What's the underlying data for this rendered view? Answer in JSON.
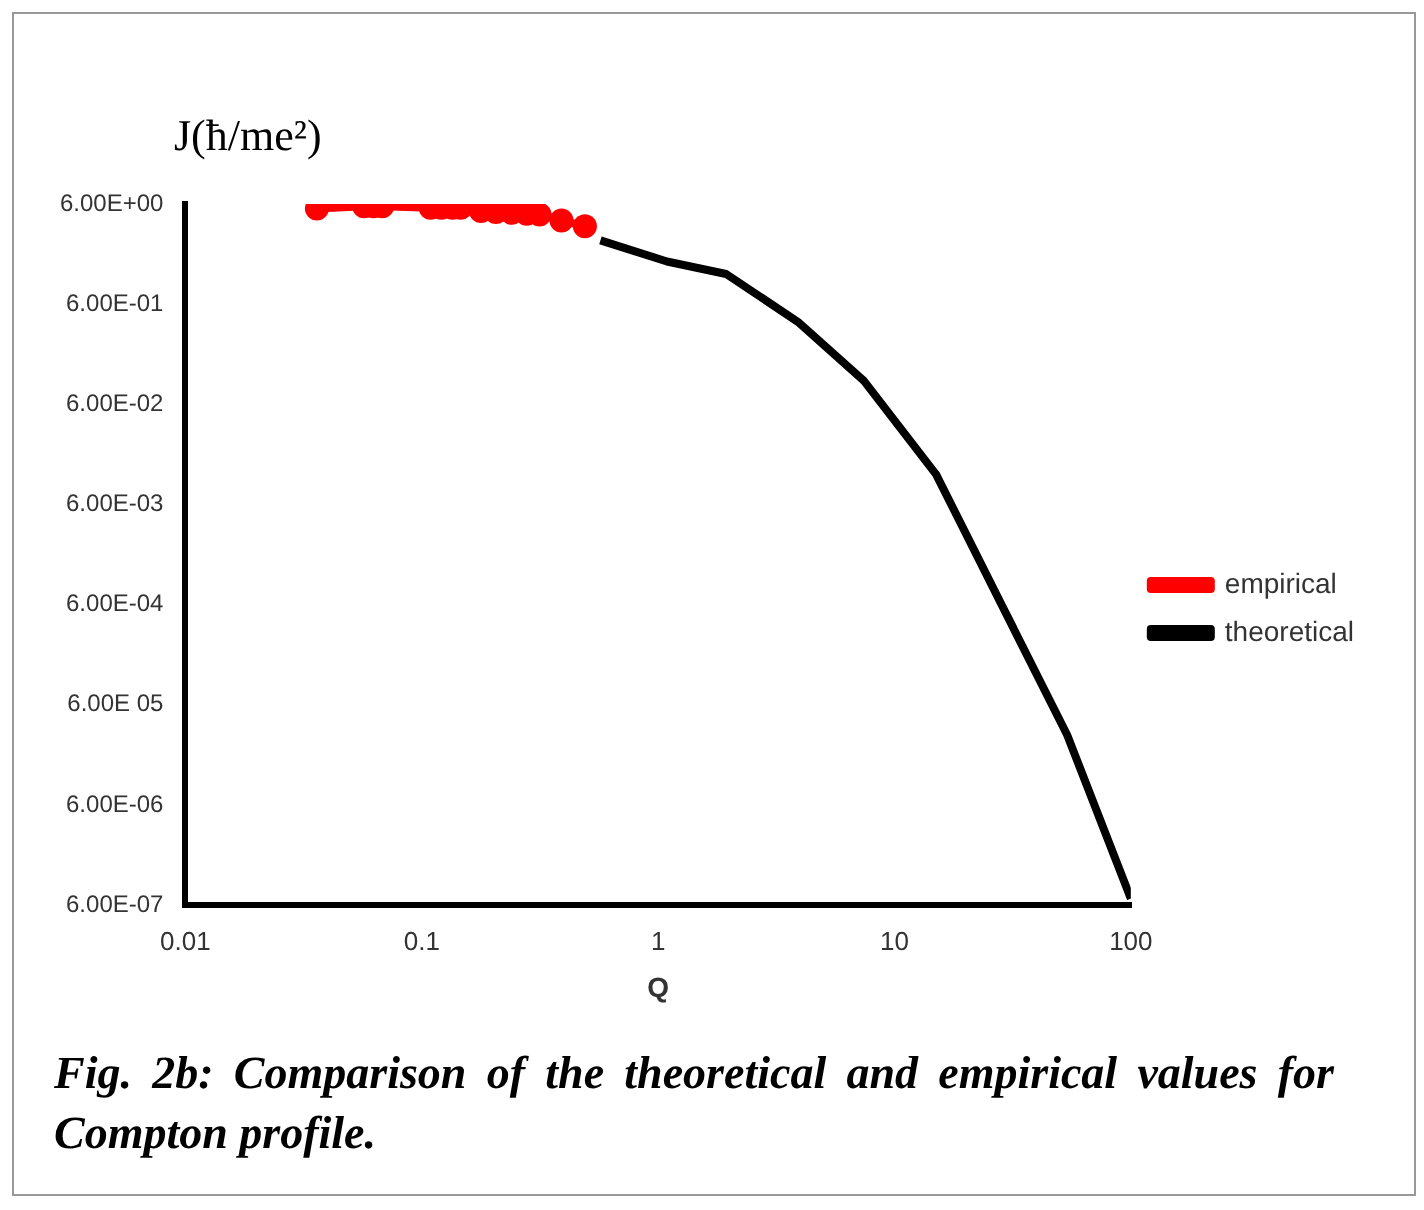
{
  "chart_data": {
    "type": "line",
    "xlabel": "Q",
    "ylabel": "J(ħ/me²)",
    "log": "xy",
    "legend": "right",
    "grid": false,
    "xlim": [
      0.01,
      100
    ],
    "xticks": [
      {
        "value": 0.01,
        "label": "0.01"
      },
      {
        "value": 0.1,
        "label": "0.1"
      },
      1,
      10,
      100
    ],
    "ylim": [
      6e-07,
      6
    ],
    "yticks": [
      {
        "value": 6e-07,
        "label": "6.00E-07"
      },
      {
        "value": 6e-06,
        "label": "6.00E-06"
      },
      {
        "value": 6e-05,
        "label": "6.00E 05"
      },
      {
        "value": 0.0006,
        "label": "6.00E-04"
      },
      {
        "value": 0.006,
        "label": "6.00E-03"
      },
      {
        "value": 0.06,
        "label": "6.00E-02"
      },
      {
        "value": 0.6,
        "label": "6.00E-01"
      },
      {
        "value": 6,
        "label": "6.00E+00"
      }
    ],
    "series": [
      {
        "name": "theoretical",
        "color": "#000000",
        "marker": "none",
        "x": [
          0.57,
          1.09,
          1.94,
          3.9,
          7.4,
          15,
          28.4,
          53.8,
          100
        ],
        "values": [
          2.6,
          1.6,
          1.2,
          0.4,
          0.104,
          0.012,
          0.0006,
          3e-05,
          7e-07
        ]
      },
      {
        "name": "empirical",
        "color": "#ff0000",
        "marker": "circle",
        "x": [
          0.036,
          0.057,
          0.0625,
          0.068,
          0.109,
          0.121,
          0.135,
          0.146,
          0.178,
          0.206,
          0.24,
          0.278,
          0.315,
          0.39,
          0.49
        ],
        "values": [
          5.4,
          5.7,
          5.7,
          5.7,
          5.5,
          5.5,
          5.5,
          5.5,
          5.1,
          5.0,
          4.9,
          4.8,
          4.7,
          4.1,
          3.6
        ]
      }
    ],
    "annotations": [
      "Fig. 2b: Comparison of the theoretical and empirical values for Compton profile."
    ]
  }
}
